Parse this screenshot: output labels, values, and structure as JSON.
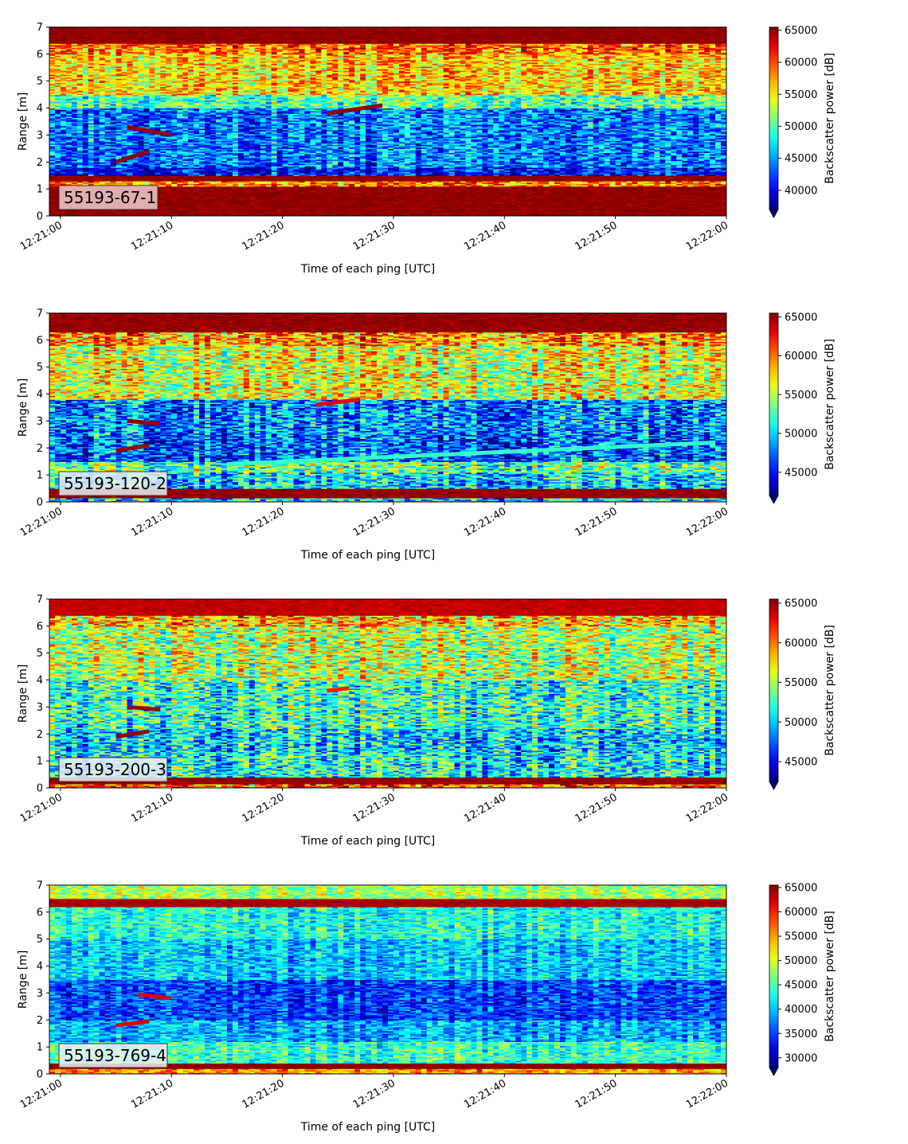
{
  "chart_data": [
    {
      "type": "heatmap",
      "badge": "55193-67-1",
      "xlabel": "Time of each ping [UTC]",
      "ylabel": "Range [m]",
      "x_ticks": [
        "12:21:00",
        "12:21:10",
        "12:21:20",
        "12:21:30",
        "12:21:40",
        "12:21:50",
        "12:22:00"
      ],
      "x_range": [
        "12:20:59",
        "12:22:00"
      ],
      "y_ticks": [
        0,
        1,
        2,
        3,
        4,
        5,
        6,
        7
      ],
      "ylim": [
        0,
        7
      ],
      "colorbar_label": "Backscatter power [dB]",
      "colorbar_ticks": [
        40000,
        45000,
        50000,
        55000,
        60000,
        65000
      ],
      "colorbar_range": [
        37000,
        65500
      ],
      "colormap": "jet",
      "features": [
        {
          "kind": "band",
          "from": 0.0,
          "to": 0.25,
          "value": 65000
        },
        {
          "kind": "band",
          "from": 0.25,
          "to": 1.1,
          "value": 65000
        },
        {
          "kind": "band",
          "from": 1.1,
          "to": 1.3,
          "value": 58000
        },
        {
          "kind": "band",
          "from": 1.5,
          "to": 1.8,
          "value": 41000
        },
        {
          "kind": "band",
          "from": 1.8,
          "to": 4.0,
          "value": 44000
        },
        {
          "kind": "band",
          "from": 4.0,
          "to": 4.5,
          "value": 50000
        },
        {
          "kind": "band",
          "from": 4.5,
          "to": 6.0,
          "value": 56000
        },
        {
          "kind": "band",
          "from": 6.0,
          "to": 6.4,
          "value": 59000
        },
        {
          "kind": "band",
          "from": 6.4,
          "to": 7.0,
          "value": 65000
        },
        {
          "kind": "track",
          "t0": "12:21:05",
          "t1": "12:21:08",
          "y0": 2.0,
          "y1": 2.4,
          "value": 65000
        },
        {
          "kind": "track",
          "t0": "12:21:06",
          "t1": "12:21:10",
          "y0": 3.3,
          "y1": 3.0,
          "value": 65000
        },
        {
          "kind": "track",
          "t0": "12:21:24",
          "t1": "12:21:29",
          "y0": 3.8,
          "y1": 4.1,
          "value": 65000
        }
      ]
    },
    {
      "type": "heatmap",
      "badge": "55193-120-2",
      "xlabel": "Time of each ping [UTC]",
      "ylabel": "Range [m]",
      "x_ticks": [
        "12:21:00",
        "12:21:10",
        "12:21:20",
        "12:21:30",
        "12:21:40",
        "12:21:50",
        "12:22:00"
      ],
      "x_range": [
        "12:20:59",
        "12:22:00"
      ],
      "y_ticks": [
        0,
        1,
        2,
        3,
        4,
        5,
        6,
        7
      ],
      "ylim": [
        0,
        7
      ],
      "colorbar_label": "Backscatter power [dB]",
      "colorbar_ticks": [
        45000,
        50000,
        55000,
        60000,
        65000
      ],
      "colorbar_range": [
        42000,
        65500
      ],
      "colormap": "jet",
      "features": [
        {
          "kind": "band",
          "from": 0.0,
          "to": 0.15,
          "value": 50000
        },
        {
          "kind": "band",
          "from": 0.15,
          "to": 0.5,
          "value": 65000
        },
        {
          "kind": "band",
          "from": 0.5,
          "to": 1.1,
          "value": 50000
        },
        {
          "kind": "band",
          "from": 1.1,
          "to": 1.5,
          "value": 53000
        },
        {
          "kind": "band",
          "from": 1.5,
          "to": 2.5,
          "value": 47000
        },
        {
          "kind": "band",
          "from": 2.5,
          "to": 3.8,
          "value": 48000
        },
        {
          "kind": "band",
          "from": 3.8,
          "to": 5.8,
          "value": 56000
        },
        {
          "kind": "band",
          "from": 5.8,
          "to": 6.3,
          "value": 59000
        },
        {
          "kind": "band",
          "from": 6.3,
          "to": 7.0,
          "value": 65000
        },
        {
          "kind": "track",
          "t0": "12:21:05",
          "t1": "12:21:08",
          "y0": 1.9,
          "y1": 2.1,
          "value": 65000
        },
        {
          "kind": "track",
          "t0": "12:21:06",
          "t1": "12:21:09",
          "y0": 3.0,
          "y1": 2.9,
          "value": 65000
        },
        {
          "kind": "track",
          "t0": "12:21:23",
          "t1": "12:21:27",
          "y0": 3.6,
          "y1": 3.8,
          "value": 63000
        },
        {
          "kind": "track",
          "t0": "12:21:15",
          "t1": "12:21:59",
          "y0": 1.4,
          "y1": 2.2,
          "value": 52000
        }
      ]
    },
    {
      "type": "heatmap",
      "badge": "55193-200-3",
      "xlabel": "Time of each ping [UTC]",
      "ylabel": "Range [m]",
      "x_ticks": [
        "12:21:00",
        "12:21:10",
        "12:21:20",
        "12:21:30",
        "12:21:40",
        "12:21:50",
        "12:22:00"
      ],
      "x_range": [
        "12:20:59",
        "12:22:00"
      ],
      "y_ticks": [
        0,
        1,
        2,
        3,
        4,
        5,
        6,
        7
      ],
      "ylim": [
        0,
        7
      ],
      "colorbar_label": "Backscatter power [dB]",
      "colorbar_ticks": [
        45000,
        50000,
        55000,
        60000,
        65000
      ],
      "colorbar_range": [
        42500,
        65500
      ],
      "colormap": "jet",
      "features": [
        {
          "kind": "band",
          "from": 0.0,
          "to": 0.15,
          "value": 60000
        },
        {
          "kind": "band",
          "from": 0.15,
          "to": 0.4,
          "value": 65000
        },
        {
          "kind": "band",
          "from": 0.4,
          "to": 1.3,
          "value": 51000
        },
        {
          "kind": "band",
          "from": 1.3,
          "to": 2.2,
          "value": 50000
        },
        {
          "kind": "band",
          "from": 2.2,
          "to": 4.0,
          "value": 52000
        },
        {
          "kind": "band",
          "from": 4.0,
          "to": 6.0,
          "value": 55000
        },
        {
          "kind": "band",
          "from": 6.0,
          "to": 6.4,
          "value": 58000
        },
        {
          "kind": "band",
          "from": 6.4,
          "to": 7.0,
          "value": 64000
        },
        {
          "kind": "track",
          "t0": "12:21:05",
          "t1": "12:21:08",
          "y0": 1.9,
          "y1": 2.1,
          "value": 65000
        },
        {
          "kind": "track",
          "t0": "12:21:06",
          "t1": "12:21:09",
          "y0": 3.0,
          "y1": 2.9,
          "value": 65000
        },
        {
          "kind": "track",
          "t0": "12:21:24",
          "t1": "12:21:26",
          "y0": 3.6,
          "y1": 3.7,
          "value": 62000
        }
      ]
    },
    {
      "type": "heatmap",
      "badge": "55193-769-4",
      "xlabel": "Time of each ping [UTC]",
      "ylabel": "Range [m]",
      "x_ticks": [
        "12:21:00",
        "12:21:10",
        "12:21:20",
        "12:21:30",
        "12:21:40",
        "12:21:50",
        "12:22:00"
      ],
      "x_range": [
        "12:20:59",
        "12:22:00"
      ],
      "y_ticks": [
        0,
        1,
        2,
        3,
        4,
        5,
        6,
        7
      ],
      "ylim": [
        0,
        7
      ],
      "colorbar_label": "Backscatter power [dB]",
      "colorbar_ticks": [
        30000,
        35000,
        40000,
        45000,
        50000,
        55000,
        60000,
        65000
      ],
      "colorbar_range": [
        28000,
        65500
      ],
      "colormap": "jet",
      "features": [
        {
          "kind": "band",
          "from": 0.0,
          "to": 0.2,
          "value": 55000
        },
        {
          "kind": "band",
          "from": 0.2,
          "to": 0.4,
          "value": 65000
        },
        {
          "kind": "band",
          "from": 0.4,
          "to": 1.2,
          "value": 44000
        },
        {
          "kind": "band",
          "from": 1.2,
          "to": 2.0,
          "value": 39000
        },
        {
          "kind": "band",
          "from": 2.0,
          "to": 3.5,
          "value": 35000
        },
        {
          "kind": "band",
          "from": 3.5,
          "to": 5.0,
          "value": 40000
        },
        {
          "kind": "band",
          "from": 5.0,
          "to": 6.2,
          "value": 43000
        },
        {
          "kind": "band",
          "from": 6.2,
          "to": 6.5,
          "value": 64000
        },
        {
          "kind": "band",
          "from": 6.5,
          "to": 7.0,
          "value": 48000
        },
        {
          "kind": "track",
          "t0": "12:21:05",
          "t1": "12:21:08",
          "y0": 1.8,
          "y1": 1.95,
          "value": 62000
        },
        {
          "kind": "track",
          "t0": "12:21:07",
          "t1": "12:21:10",
          "y0": 2.95,
          "y1": 2.8,
          "value": 62000
        }
      ]
    }
  ]
}
